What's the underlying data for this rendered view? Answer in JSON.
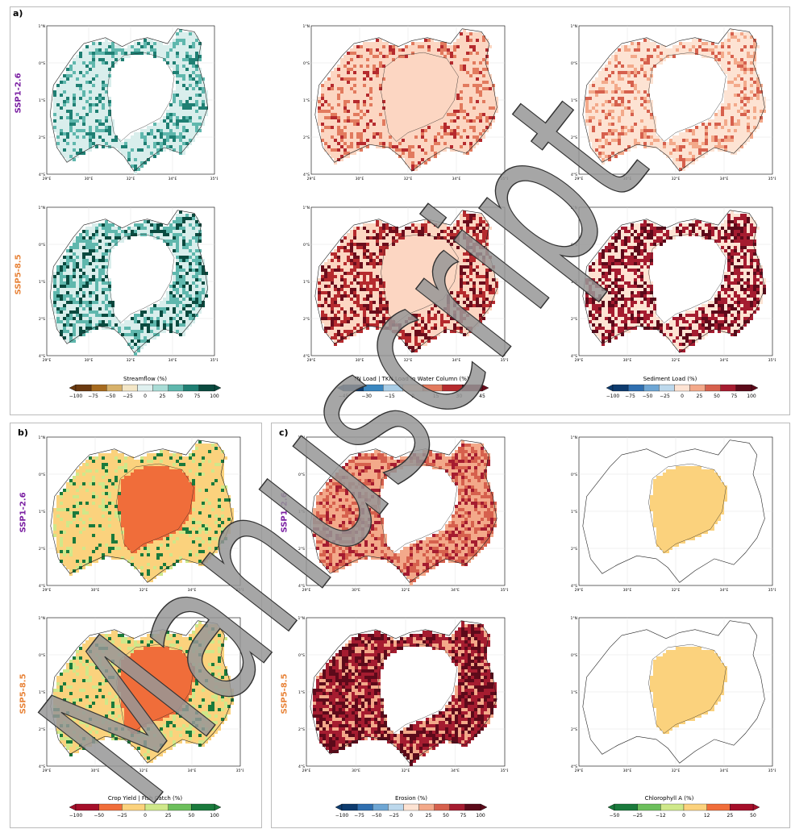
{
  "section_labels": {
    "a": "a)",
    "b": "b)",
    "c": "c)"
  },
  "scenarios": {
    "ssp126": "SSP1-2.6",
    "ssp585": "SSP5-8.5"
  },
  "scenario_colors": {
    "ssp126": "#7a1fa2",
    "ssp585": "#e8843a"
  },
  "axes": {
    "lat_ticks": [
      "1°N",
      "0°S",
      "1°S",
      "2°S",
      "4°S"
    ],
    "lon_ticks": [
      "29°E",
      "30°E",
      "32°E",
      "34°E",
      "35°E"
    ]
  },
  "watermark_text": "Manuscript",
  "colorbars": {
    "streamflow": {
      "title": "Streamflow (%)",
      "ticks": [
        "−100",
        "−75",
        "−50",
        "−25",
        "0",
        "25",
        "50",
        "75",
        "100"
      ],
      "colors": [
        "#6b3a10",
        "#a66a1f",
        "#d7b16a",
        "#f3e6c6",
        "#dff0ef",
        "#a9dcd6",
        "#5fb7ad",
        "#1f7f73",
        "#0a4a3f"
      ]
    },
    "tn": {
      "title": "TN Load | TKN Load in Water Column (%)",
      "ticks": [
        "−45",
        "−30",
        "−15",
        "0",
        "15",
        "30",
        "45"
      ],
      "colors": [
        "#0d3b6e",
        "#3a87c0",
        "#a9cde6",
        "#fcd6c2",
        "#e27a5e",
        "#b52a2e",
        "#6b0d1c"
      ]
    },
    "sediment": {
      "title": "Sediment Load (%)",
      "ticks": [
        "−100",
        "−75",
        "−50",
        "−25",
        "0",
        "25",
        "50",
        "75",
        "100"
      ],
      "colors": [
        "#0d3b6e",
        "#2f6fb0",
        "#6ea6d4",
        "#bcd8ec",
        "#fde3d3",
        "#f3a98a",
        "#d6604d",
        "#a51c30",
        "#5c0a1a"
      ]
    },
    "crop": {
      "title": "Crop Yield | Fish Catch (%)",
      "ticks": [
        "−100",
        "−50",
        "−25",
        "0",
        "25",
        "50",
        "100"
      ],
      "colors": [
        "#a50f2a",
        "#f06d3a",
        "#fbd27d",
        "#cfe88a",
        "#6cbf5c",
        "#1a7a3c"
      ]
    },
    "erosion": {
      "title": "Erosion (%)",
      "ticks": [
        "−100",
        "−75",
        "−50",
        "−25",
        "0",
        "25",
        "50",
        "75",
        "100"
      ],
      "colors": [
        "#0d3b6e",
        "#2f6fb0",
        "#6ea6d4",
        "#bcd8ec",
        "#fde3d3",
        "#f3a98a",
        "#d6604d",
        "#a51c30",
        "#5c0a1a"
      ]
    },
    "chl": {
      "title": "Chlorophyll  A (%)",
      "ticks": [
        "−50",
        "−25",
        "−12",
        "0",
        "12",
        "25",
        "50"
      ],
      "colors": [
        "#1a7a3c",
        "#6cbf5c",
        "#cfe88a",
        "#fbd27d",
        "#f06d3a",
        "#a50f2a"
      ]
    }
  },
  "maps": {
    "streamflow_126": {
      "land": "#d9eeec",
      "lake": "#ffffff",
      "hot": "#5fb7ad",
      "hot2": "#1f7f73",
      "density": 0.35
    },
    "tn_126": {
      "land": "#fcd6c2",
      "lake": "#fcd6c2",
      "hot": "#e27a5e",
      "hot2": "#b52a2e",
      "density": 0.3
    },
    "sed_126": {
      "land": "#fde3d3",
      "lake": "#ffffff",
      "hot": "#f3a98a",
      "hot2": "#d6604d",
      "density": 0.3
    },
    "streamflow_585": {
      "land": "#d9eeec",
      "lake": "#ffffff",
      "hot": "#5fb7ad",
      "hot2": "#0a4a3f",
      "density": 0.55
    },
    "tn_585": {
      "land": "#fcd6c2",
      "lake": "#fcd6c2",
      "hot": "#b52a2e",
      "hot2": "#6b0d1c",
      "density": 0.5
    },
    "sed_585": {
      "land": "#fde3d3",
      "lake": "#ffffff",
      "hot": "#a51c30",
      "hot2": "#5c0a1a",
      "density": 0.55
    },
    "crop_126": {
      "land": "#fbd27d",
      "lake": "#f06d3a",
      "hot": "#cfe88a",
      "hot2": "#1a7a3c",
      "density": 0.25
    },
    "crop_585": {
      "land": "#fbd27d",
      "lake": "#f06d3a",
      "hot": "#cfe88a",
      "hot2": "#1a7a3c",
      "density": 0.3
    },
    "eros_126": {
      "land": "#f3a98a",
      "lake": "#ffffff",
      "hot": "#d6604d",
      "hot2": "#a51c30",
      "density": 0.5
    },
    "eros_585": {
      "land": "#a51c30",
      "lake": "#ffffff",
      "hot": "#5c0a1a",
      "hot2": "#f3a98a",
      "density": 0.6
    },
    "chl_126": {
      "land": "#ffffff",
      "lake": "#fbd27d",
      "hot": "#f06d3a",
      "hot2": "#f06d3a",
      "density": 0
    },
    "chl_585": {
      "land": "#ffffff",
      "lake": "#fbd27d",
      "hot": "#a50f2a",
      "hot2": "#a50f2a",
      "density": 0
    }
  }
}
